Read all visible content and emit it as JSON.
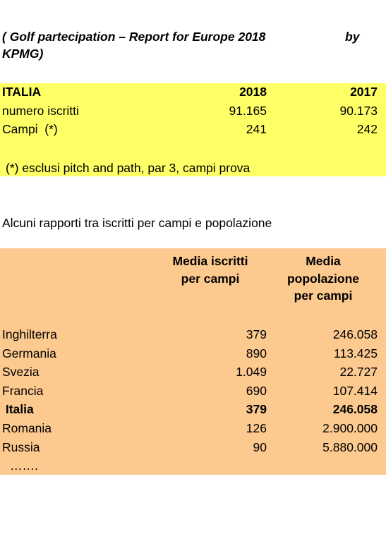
{
  "header": {
    "title_line1": "( Golf partecipation – Report for Europe 2018",
    "title_by": "by",
    "title_line2": "KPMG)"
  },
  "table1": {
    "header": [
      "ITALIA",
      "2018",
      "2017"
    ],
    "rows": [
      [
        "numero iscritti",
        "91.165",
        "90.173"
      ],
      [
        "Campi  (*)",
        "241",
        "242"
      ]
    ],
    "note": "(*) esclusi pitch and path, par 3, campi prova"
  },
  "section_heading": "Alcuni rapporti tra iscritti per campi e popolazione",
  "table2": {
    "columns": [
      [
        "Media iscritti",
        "per campi"
      ],
      [
        "Media",
        "popolazione",
        "per campi"
      ]
    ],
    "rows": [
      [
        "Inghilterra",
        "379",
        "246.058"
      ],
      [
        "Germania",
        "890",
        "113.425"
      ],
      [
        "Svezia",
        "1.049",
        "22.727"
      ],
      [
        "Francia",
        "690",
        "107.414"
      ],
      [
        " Italia",
        "379",
        "246.058"
      ],
      [
        "Romania",
        "126",
        "2.900.000"
      ],
      [
        "Russia",
        "90",
        "5.880.000"
      ]
    ],
    "bold_row": 4,
    "ellipsis": "……."
  }
}
